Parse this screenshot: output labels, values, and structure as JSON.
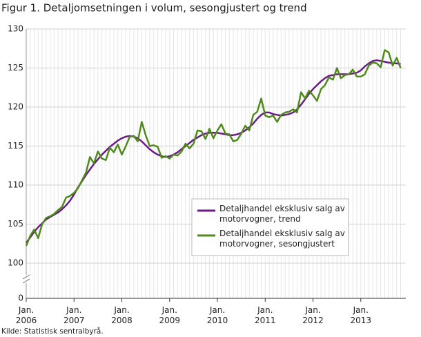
{
  "chart_data": {
    "type": "line",
    "title": "Figur 1. Detaljomsetningen i volum, sesongjustert og trend",
    "source": "Kilde: Statistisk sentralbyrå.",
    "categories": [
      "Jan. 2006",
      null,
      null,
      null,
      null,
      null,
      null,
      null,
      null,
      null,
      null,
      null,
      "Jan. 2007",
      null,
      null,
      null,
      null,
      null,
      null,
      null,
      null,
      null,
      null,
      null,
      "Jan. 2008",
      null,
      null,
      null,
      null,
      null,
      null,
      null,
      null,
      null,
      null,
      null,
      "Jan. 2009",
      null,
      null,
      null,
      null,
      null,
      null,
      null,
      null,
      null,
      null,
      null,
      "Jan. 2010",
      null,
      null,
      null,
      null,
      null,
      null,
      null,
      null,
      null,
      null,
      null,
      "Jan. 2011",
      null,
      null,
      null,
      null,
      null,
      null,
      null,
      null,
      null,
      null,
      null,
      "Jan. 2012",
      null,
      null,
      null,
      null,
      null,
      null,
      null,
      null,
      null,
      null,
      null,
      "Jan. 2013",
      null,
      null,
      null,
      null,
      null,
      null,
      null,
      null,
      null,
      null
    ],
    "series": [
      {
        "name": "Detaljhandel eksklusiv salg av motorvogner, trend",
        "color": "#6a1b85",
        "values": [
          102.6,
          103.3,
          104.0,
          104.6,
          105.1,
          105.6,
          105.9,
          106.2,
          106.5,
          106.9,
          107.4,
          108.0,
          108.8,
          109.7,
          110.5,
          111.3,
          112.0,
          112.7,
          113.3,
          113.9,
          114.4,
          114.9,
          115.3,
          115.7,
          116.0,
          116.2,
          116.3,
          116.2,
          116.0,
          115.6,
          115.1,
          114.6,
          114.2,
          113.9,
          113.7,
          113.6,
          113.7,
          113.9,
          114.2,
          114.6,
          115.0,
          115.4,
          115.8,
          116.1,
          116.4,
          116.6,
          116.7,
          116.7,
          116.7,
          116.6,
          116.5,
          116.4,
          116.4,
          116.5,
          116.7,
          117.0,
          117.4,
          117.9,
          118.5,
          119.0,
          119.3,
          119.3,
          119.1,
          119.0,
          118.9,
          119.0,
          119.1,
          119.3,
          119.7,
          120.3,
          121.0,
          121.7,
          122.3,
          122.8,
          123.3,
          123.7,
          124.0,
          124.1,
          124.2,
          124.2,
          124.2,
          124.2,
          124.3,
          124.4,
          124.7,
          125.2,
          125.6,
          125.9,
          126.0,
          125.9,
          125.8,
          125.7,
          125.6,
          125.6,
          125.5
        ]
      },
      {
        "name": "Detaljhandel eksklusiv salg av motorvogner, sesongjustert",
        "color": "#4e8a1b",
        "values": [
          102.2,
          103.5,
          104.3,
          103.2,
          105.0,
          105.8,
          106.0,
          106.3,
          106.8,
          107.2,
          108.4,
          108.6,
          109.0,
          109.6,
          110.6,
          111.6,
          113.6,
          112.8,
          114.3,
          113.4,
          113.2,
          114.8,
          114.2,
          115.2,
          113.9,
          115.0,
          116.2,
          116.3,
          115.6,
          118.1,
          116.4,
          115.0,
          115.1,
          114.9,
          113.5,
          113.7,
          113.4,
          113.9,
          113.8,
          114.3,
          115.3,
          114.7,
          115.3,
          117.0,
          116.9,
          115.9,
          117.2,
          116.0,
          117.0,
          117.8,
          116.6,
          116.5,
          115.6,
          115.8,
          116.6,
          117.6,
          117.0,
          119.0,
          119.4,
          121.1,
          118.9,
          118.7,
          118.9,
          118.1,
          119.0,
          119.3,
          119.4,
          119.7,
          119.3,
          121.9,
          121.1,
          122.1,
          121.5,
          120.8,
          122.3,
          122.8,
          123.8,
          123.5,
          125.0,
          123.7,
          124.1,
          124.2,
          124.8,
          123.9,
          123.9,
          124.2,
          125.3,
          125.7,
          125.6,
          125.1,
          127.3,
          127.0,
          125.3,
          126.3,
          125.0
        ]
      }
    ],
    "ylim": [
      100,
      130
    ],
    "yticks": [
      0,
      100,
      105,
      110,
      115,
      120,
      125,
      130
    ],
    "axis_break": true,
    "grid": true,
    "legend": "right"
  }
}
